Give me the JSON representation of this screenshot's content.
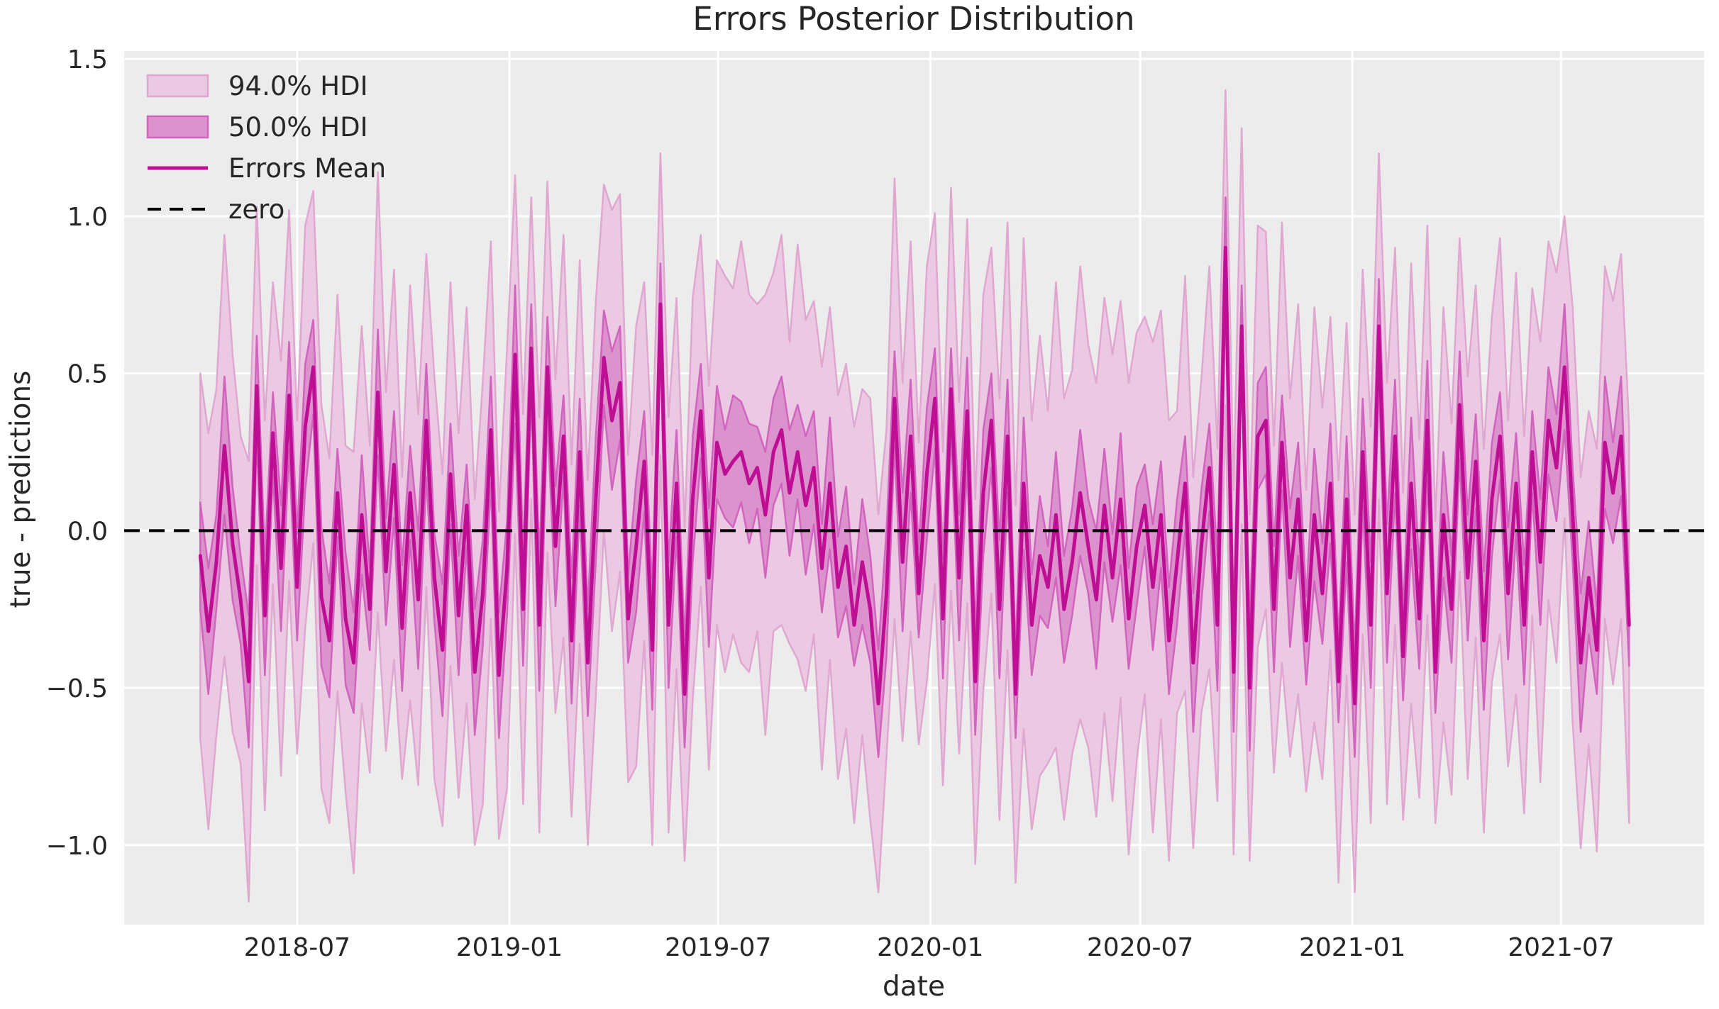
{
  "chart_data": {
    "type": "line",
    "title": "Errors Posterior Distribution",
    "xlabel": "date",
    "ylabel": "true - predictions",
    "xlim": [
      "2018-02-01",
      "2021-11-02"
    ],
    "ylim": [
      -1.253,
      1.525
    ],
    "grid": true,
    "legend_position": "upper-left",
    "legend": [
      {
        "label": "94.0% HDI",
        "type": "band"
      },
      {
        "label": "50.0% HDI",
        "type": "band"
      },
      {
        "label": "Errors Mean",
        "type": "line"
      },
      {
        "label": "zero",
        "type": "dashed-line"
      }
    ],
    "colors": {
      "band94_fill": "#EBC9E2",
      "band94_edge": "#E0A7D1",
      "band50_fill": "#DC92CD",
      "band50_edge": "#D164BE",
      "mean_line": "#BE0E94",
      "zero_line": "#000000",
      "axes_background": "#ECECEC",
      "gridline": "#FFFFFF",
      "text": "#262626"
    },
    "x_ticks": [
      {
        "date": "2018-07-01",
        "label": "2018-07"
      },
      {
        "date": "2019-01-01",
        "label": "2019-01"
      },
      {
        "date": "2019-07-01",
        "label": "2019-07"
      },
      {
        "date": "2020-01-01",
        "label": "2020-01"
      },
      {
        "date": "2020-07-01",
        "label": "2020-07"
      },
      {
        "date": "2021-01-01",
        "label": "2021-01"
      },
      {
        "date": "2021-07-01",
        "label": "2021-07"
      }
    ],
    "y_ticks": [
      {
        "value": 1.5,
        "label": "1.5"
      },
      {
        "value": 1.0,
        "label": "1.0"
      },
      {
        "value": 0.5,
        "label": "0.5"
      },
      {
        "value": 0.0,
        "label": "0.0"
      },
      {
        "value": -0.5,
        "label": "−0.5"
      },
      {
        "value": -1.0,
        "label": "−1.0"
      }
    ],
    "zero_reference": 0.0,
    "series": {
      "name": "Errors Mean",
      "x_start": "2018-04-08",
      "x_step_days": 7,
      "n_points": 178,
      "mean": [
        -0.08,
        -0.32,
        -0.1,
        0.27,
        -0.04,
        -0.22,
        -0.48,
        0.46,
        -0.27,
        0.31,
        -0.12,
        0.43,
        -0.18,
        0.33,
        0.52,
        -0.21,
        -0.35,
        0.12,
        -0.28,
        -0.42,
        0.05,
        -0.25,
        0.44,
        -0.13,
        0.21,
        -0.31,
        0.12,
        -0.22,
        0.35,
        -0.15,
        -0.38,
        0.18,
        -0.27,
        0.08,
        -0.45,
        -0.2,
        0.32,
        -0.46,
        -0.12,
        0.56,
        -0.25,
        0.58,
        -0.3,
        0.52,
        -0.05,
        0.3,
        -0.35,
        0.25,
        -0.42,
        0.1,
        0.55,
        0.35,
        0.47,
        -0.28,
        -0.05,
        0.22,
        -0.38,
        0.72,
        -0.3,
        0.15,
        -0.52,
        0.1,
        0.38,
        -0.15,
        0.28,
        0.18,
        0.22,
        0.25,
        0.15,
        0.2,
        0.05,
        0.25,
        0.32,
        0.12,
        0.25,
        0.08,
        0.2,
        -0.12,
        0.15,
        -0.18,
        -0.05,
        -0.3,
        -0.1,
        -0.25,
        -0.55,
        -0.2,
        0.42,
        -0.1,
        0.3,
        -0.2,
        0.18,
        0.42,
        -0.28,
        0.45,
        -0.15,
        0.38,
        -0.48,
        0.12,
        0.35,
        -0.25,
        0.3,
        -0.52,
        0.15,
        -0.3,
        -0.08,
        -0.18,
        0.05,
        -0.25,
        -0.1,
        0.12,
        -0.05,
        -0.22,
        0.08,
        -0.15,
        0.1,
        -0.28,
        -0.05,
        0.08,
        -0.18,
        0.05,
        -0.35,
        -0.1,
        0.15,
        -0.42,
        -0.05,
        0.2,
        -0.3,
        0.9,
        -0.45,
        0.65,
        -0.5,
        0.3,
        0.35,
        -0.25,
        0.28,
        -0.15,
        0.1,
        -0.35,
        0.05,
        -0.2,
        0.15,
        -0.48,
        0.1,
        -0.55,
        0.25,
        -0.3,
        0.65,
        -0.2,
        0.3,
        -0.4,
        0.15,
        -0.28,
        0.35,
        -0.45,
        0.05,
        -0.25,
        0.4,
        -0.15,
        0.22,
        -0.35,
        0.1,
        0.3,
        -0.2,
        0.15,
        -0.3,
        0.25,
        -0.1,
        0.35,
        0.2,
        0.52,
        0.05,
        -0.42,
        -0.15,
        -0.38,
        0.28,
        0.12,
        0.3,
        -0.3
      ],
      "hdi94_half": [
        0.58,
        0.63,
        0.55,
        0.67,
        0.6,
        0.52,
        0.7,
        0.57,
        0.62,
        0.48,
        0.66,
        0.59,
        0.53,
        0.64,
        0.56,
        0.61,
        0.58,
        0.63,
        0.55,
        0.67,
        0.6,
        0.52,
        0.7,
        0.57,
        0.62,
        0.48,
        0.66,
        0.59,
        0.53,
        0.64,
        0.56,
        0.61,
        0.58,
        0.63,
        0.55,
        0.67,
        0.6,
        0.52,
        0.7,
        0.57,
        0.62,
        0.48,
        0.66,
        0.59,
        0.53,
        0.64,
        0.56,
        0.61,
        0.58,
        0.63,
        0.55,
        0.67,
        0.6,
        0.52,
        0.7,
        0.57,
        0.62,
        0.48,
        0.66,
        0.59,
        0.53,
        0.64,
        0.56,
        0.61,
        0.58,
        0.63,
        0.55,
        0.67,
        0.6,
        0.52,
        0.7,
        0.57,
        0.62,
        0.48,
        0.66,
        0.59,
        0.53,
        0.64,
        0.56,
        0.61,
        0.58,
        0.63,
        0.55,
        0.67,
        0.6,
        0.52,
        0.7,
        0.57,
        0.62,
        0.48,
        0.66,
        0.59,
        0.53,
        0.64,
        0.56,
        0.61,
        0.58,
        0.63,
        0.55,
        0.67,
        0.68,
        0.6,
        0.78,
        0.65,
        0.7,
        0.56,
        0.74,
        0.67,
        0.61,
        0.72,
        0.64,
        0.69,
        0.66,
        0.71,
        0.63,
        0.75,
        0.68,
        0.6,
        0.78,
        0.65,
        0.7,
        0.48,
        0.66,
        0.59,
        0.53,
        0.64,
        0.56,
        0.5,
        0.58,
        0.63,
        0.55,
        0.67,
        0.6,
        0.52,
        0.7,
        0.57,
        0.62,
        0.48,
        0.66,
        0.59,
        0.53,
        0.64,
        0.56,
        0.6,
        0.58,
        0.63,
        0.55,
        0.67,
        0.6,
        0.52,
        0.7,
        0.57,
        0.62,
        0.48,
        0.66,
        0.59,
        0.53,
        0.64,
        0.56,
        0.61,
        0.58,
        0.63,
        0.55,
        0.67,
        0.6,
        0.52,
        0.7,
        0.57,
        0.62,
        0.48,
        0.66,
        0.59,
        0.53,
        0.64,
        0.56,
        0.61,
        0.58,
        0.63
      ],
      "hdi50_half": [
        0.17,
        0.2,
        0.15,
        0.22,
        0.18,
        0.14,
        0.21,
        0.16,
        0.19,
        0.13,
        0.2,
        0.17,
        0.17,
        0.2,
        0.15,
        0.22,
        0.18,
        0.14,
        0.21,
        0.16,
        0.19,
        0.13,
        0.2,
        0.17,
        0.17,
        0.2,
        0.15,
        0.22,
        0.18,
        0.14,
        0.21,
        0.16,
        0.19,
        0.13,
        0.2,
        0.17,
        0.17,
        0.2,
        0.15,
        0.22,
        0.18,
        0.14,
        0.21,
        0.16,
        0.19,
        0.13,
        0.2,
        0.17,
        0.17,
        0.2,
        0.15,
        0.22,
        0.18,
        0.14,
        0.21,
        0.16,
        0.19,
        0.13,
        0.2,
        0.17,
        0.17,
        0.2,
        0.15,
        0.22,
        0.18,
        0.14,
        0.21,
        0.16,
        0.19,
        0.13,
        0.2,
        0.17,
        0.17,
        0.2,
        0.15,
        0.22,
        0.18,
        0.14,
        0.21,
        0.16,
        0.19,
        0.13,
        0.2,
        0.17,
        0.17,
        0.2,
        0.15,
        0.22,
        0.18,
        0.14,
        0.21,
        0.16,
        0.19,
        0.13,
        0.2,
        0.17,
        0.17,
        0.2,
        0.15,
        0.22,
        0.18,
        0.14,
        0.21,
        0.16,
        0.19,
        0.13,
        0.2,
        0.17,
        0.17,
        0.2,
        0.15,
        0.22,
        0.18,
        0.14,
        0.21,
        0.16,
        0.19,
        0.13,
        0.2,
        0.17,
        0.17,
        0.2,
        0.15,
        0.22,
        0.18,
        0.14,
        0.21,
        0.16,
        0.19,
        0.13,
        0.2,
        0.17,
        0.17,
        0.2,
        0.15,
        0.22,
        0.18,
        0.14,
        0.21,
        0.16,
        0.19,
        0.13,
        0.2,
        0.17,
        0.17,
        0.2,
        0.15,
        0.22,
        0.18,
        0.14,
        0.21,
        0.16,
        0.19,
        0.13,
        0.2,
        0.17,
        0.17,
        0.2,
        0.15,
        0.22,
        0.18,
        0.14,
        0.21,
        0.16,
        0.19,
        0.13,
        0.2,
        0.17,
        0.17,
        0.2,
        0.15,
        0.22,
        0.18,
        0.14,
        0.21,
        0.16,
        0.19,
        0.13
      ]
    }
  }
}
